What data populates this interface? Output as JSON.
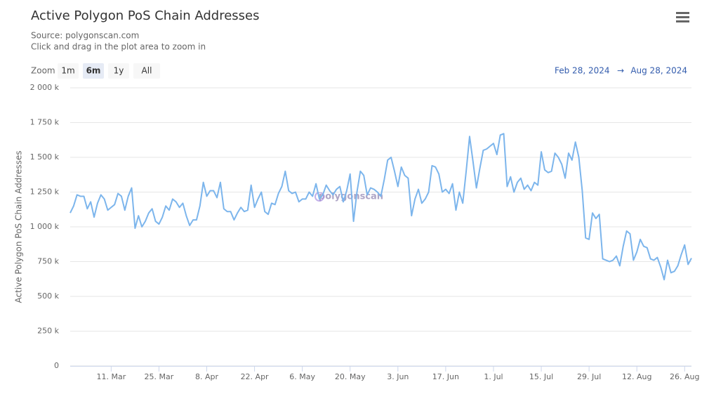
{
  "chart_data": {
    "type": "line",
    "title": "Active Polygon PoS Chain Addresses",
    "source": "Source: polygonscan.com",
    "subtitle": "Click and drag in the plot area to zoom in",
    "zoom_label": "Zoom",
    "zoom_buttons": [
      "1m",
      "6m",
      "1y",
      "All"
    ],
    "range_start": "Feb 28, 2024",
    "range_separator": "→",
    "range_end": "Aug 28, 2024",
    "watermark": "polygonscan",
    "y_label": "Active Polygon PoS Chain Addresses",
    "grid": true,
    "xlim": [
      "2024-02-28",
      "2024-08-28"
    ],
    "ylim": [
      0,
      2000000
    ],
    "yticks": [
      0,
      {
        "value": 250000,
        "label": "250 k"
      },
      {
        "value": 500000,
        "label": "500 k"
      },
      {
        "value": 750000,
        "label": "750 k"
      },
      {
        "value": 1000000,
        "label": "1 000 k"
      },
      {
        "value": 1250000,
        "label": "1 250 k"
      },
      {
        "value": 1500000,
        "label": "1 500 k"
      },
      {
        "value": 1750000,
        "label": "1 750 k"
      },
      {
        "value": 2000000,
        "label": "2 000 k"
      }
    ],
    "xticks": [
      {
        "value": "2024-03-11",
        "label": "11. Mar"
      },
      {
        "value": "2024-03-25",
        "label": "25. Mar"
      },
      {
        "value": "2024-04-08",
        "label": "8. Apr"
      },
      {
        "value": "2024-04-22",
        "label": "22. Apr"
      },
      {
        "value": "2024-05-06",
        "label": "6. May"
      },
      {
        "value": "2024-05-20",
        "label": "20. May"
      },
      {
        "value": "2024-06-03",
        "label": "3. Jun"
      },
      {
        "value": "2024-06-17",
        "label": "17. Jun"
      },
      {
        "value": "2024-07-01",
        "label": "1. Jul"
      },
      {
        "value": "2024-07-15",
        "label": "15. Jul"
      },
      {
        "value": "2024-07-29",
        "label": "29. Jul"
      },
      {
        "value": "2024-08-12",
        "label": "12. Aug"
      },
      {
        "value": "2024-08-26",
        "label": "26. Aug"
      }
    ],
    "x": [
      "2024-02-28",
      "2024-02-29",
      "2024-03-01",
      "2024-03-02",
      "2024-03-03",
      "2024-03-04",
      "2024-03-05",
      "2024-03-06",
      "2024-03-07",
      "2024-03-08",
      "2024-03-09",
      "2024-03-10",
      "2024-03-11",
      "2024-03-12",
      "2024-03-13",
      "2024-03-14",
      "2024-03-15",
      "2024-03-16",
      "2024-03-17",
      "2024-03-18",
      "2024-03-19",
      "2024-03-20",
      "2024-03-21",
      "2024-03-22",
      "2024-03-23",
      "2024-03-24",
      "2024-03-25",
      "2024-03-26",
      "2024-03-27",
      "2024-03-28",
      "2024-03-29",
      "2024-03-30",
      "2024-03-31",
      "2024-04-01",
      "2024-04-02",
      "2024-04-03",
      "2024-04-04",
      "2024-04-05",
      "2024-04-06",
      "2024-04-07",
      "2024-04-08",
      "2024-04-09",
      "2024-04-10",
      "2024-04-11",
      "2024-04-12",
      "2024-04-13",
      "2024-04-14",
      "2024-04-15",
      "2024-04-16",
      "2024-04-17",
      "2024-04-18",
      "2024-04-19",
      "2024-04-20",
      "2024-04-21",
      "2024-04-22",
      "2024-04-23",
      "2024-04-24",
      "2024-04-25",
      "2024-04-26",
      "2024-04-27",
      "2024-04-28",
      "2024-04-29",
      "2024-04-30",
      "2024-05-01",
      "2024-05-02",
      "2024-05-03",
      "2024-05-04",
      "2024-05-05",
      "2024-05-06",
      "2024-05-07",
      "2024-05-08",
      "2024-05-09",
      "2024-05-10",
      "2024-05-11",
      "2024-05-12",
      "2024-05-13",
      "2024-05-14",
      "2024-05-15",
      "2024-05-16",
      "2024-05-17",
      "2024-05-18",
      "2024-05-19",
      "2024-05-20",
      "2024-05-21",
      "2024-05-22",
      "2024-05-23",
      "2024-05-24",
      "2024-05-25",
      "2024-05-26",
      "2024-05-27",
      "2024-05-28",
      "2024-05-29",
      "2024-05-30",
      "2024-05-31",
      "2024-06-01",
      "2024-06-02",
      "2024-06-03",
      "2024-06-04",
      "2024-06-05",
      "2024-06-06",
      "2024-06-07",
      "2024-06-08",
      "2024-06-09",
      "2024-06-10",
      "2024-06-11",
      "2024-06-12",
      "2024-06-13",
      "2024-06-14",
      "2024-06-15",
      "2024-06-16",
      "2024-06-17",
      "2024-06-18",
      "2024-06-19",
      "2024-06-20",
      "2024-06-21",
      "2024-06-22",
      "2024-06-23",
      "2024-06-24",
      "2024-06-25",
      "2024-06-26",
      "2024-06-27",
      "2024-06-28",
      "2024-06-29",
      "2024-06-30",
      "2024-07-01",
      "2024-07-02",
      "2024-07-03",
      "2024-07-04",
      "2024-07-05",
      "2024-07-06",
      "2024-07-07",
      "2024-07-08",
      "2024-07-09",
      "2024-07-10",
      "2024-07-11",
      "2024-07-12",
      "2024-07-13",
      "2024-07-14",
      "2024-07-15",
      "2024-07-16",
      "2024-07-17",
      "2024-07-18",
      "2024-07-19",
      "2024-07-20",
      "2024-07-21",
      "2024-07-22",
      "2024-07-23",
      "2024-07-24",
      "2024-07-25",
      "2024-07-26",
      "2024-07-27",
      "2024-07-28",
      "2024-07-29",
      "2024-07-30",
      "2024-07-31",
      "2024-08-01",
      "2024-08-02",
      "2024-08-03",
      "2024-08-04",
      "2024-08-05",
      "2024-08-06",
      "2024-08-07",
      "2024-08-08",
      "2024-08-09",
      "2024-08-10",
      "2024-08-11",
      "2024-08-12",
      "2024-08-13",
      "2024-08-14",
      "2024-08-15",
      "2024-08-16",
      "2024-08-17",
      "2024-08-18",
      "2024-08-19",
      "2024-08-20",
      "2024-08-21",
      "2024-08-22",
      "2024-08-23",
      "2024-08-24",
      "2024-08-25",
      "2024-08-26",
      "2024-08-27",
      "2024-08-28"
    ],
    "series": [
      {
        "name": "Active Polygon PoS Chain Addresses",
        "color": "#7cb5ec",
        "values": [
          1100000,
          1150000,
          1230000,
          1220000,
          1220000,
          1130000,
          1180000,
          1070000,
          1170000,
          1230000,
          1200000,
          1120000,
          1140000,
          1160000,
          1240000,
          1220000,
          1120000,
          1220000,
          1280000,
          990000,
          1080000,
          1000000,
          1040000,
          1100000,
          1130000,
          1040000,
          1020000,
          1070000,
          1150000,
          1120000,
          1200000,
          1180000,
          1140000,
          1170000,
          1080000,
          1010000,
          1050000,
          1050000,
          1150000,
          1320000,
          1220000,
          1260000,
          1260000,
          1210000,
          1320000,
          1130000,
          1110000,
          1110000,
          1050000,
          1100000,
          1140000,
          1110000,
          1120000,
          1300000,
          1140000,
          1200000,
          1250000,
          1110000,
          1090000,
          1170000,
          1160000,
          1240000,
          1290000,
          1400000,
          1260000,
          1240000,
          1250000,
          1180000,
          1200000,
          1200000,
          1250000,
          1220000,
          1310000,
          1200000,
          1230000,
          1300000,
          1260000,
          1230000,
          1270000,
          1290000,
          1180000,
          1260000,
          1380000,
          1040000,
          1250000,
          1400000,
          1370000,
          1230000,
          1280000,
          1270000,
          1250000,
          1220000,
          1340000,
          1480000,
          1500000,
          1400000,
          1290000,
          1430000,
          1370000,
          1350000,
          1080000,
          1200000,
          1270000,
          1170000,
          1200000,
          1250000,
          1440000,
          1430000,
          1380000,
          1250000,
          1270000,
          1240000,
          1310000,
          1120000,
          1250000,
          1170000,
          1400000,
          1650000,
          1470000,
          1280000,
          1420000,
          1550000,
          1560000,
          1580000,
          1600000,
          1520000,
          1660000,
          1670000,
          1290000,
          1360000,
          1250000,
          1320000,
          1350000,
          1270000,
          1300000,
          1260000,
          1320000,
          1300000,
          1540000,
          1410000,
          1390000,
          1400000,
          1530000,
          1500000,
          1450000,
          1350000,
          1530000,
          1480000,
          1610000,
          1500000,
          1260000,
          920000,
          910000,
          1100000,
          1060000,
          1090000,
          770000,
          760000,
          750000,
          760000,
          790000,
          720000,
          860000,
          970000,
          950000,
          760000,
          820000,
          910000,
          860000,
          850000,
          770000,
          760000,
          780000,
          710000,
          620000,
          760000,
          670000,
          680000,
          720000,
          800000,
          870000,
          730000,
          775000
        ]
      }
    ]
  }
}
